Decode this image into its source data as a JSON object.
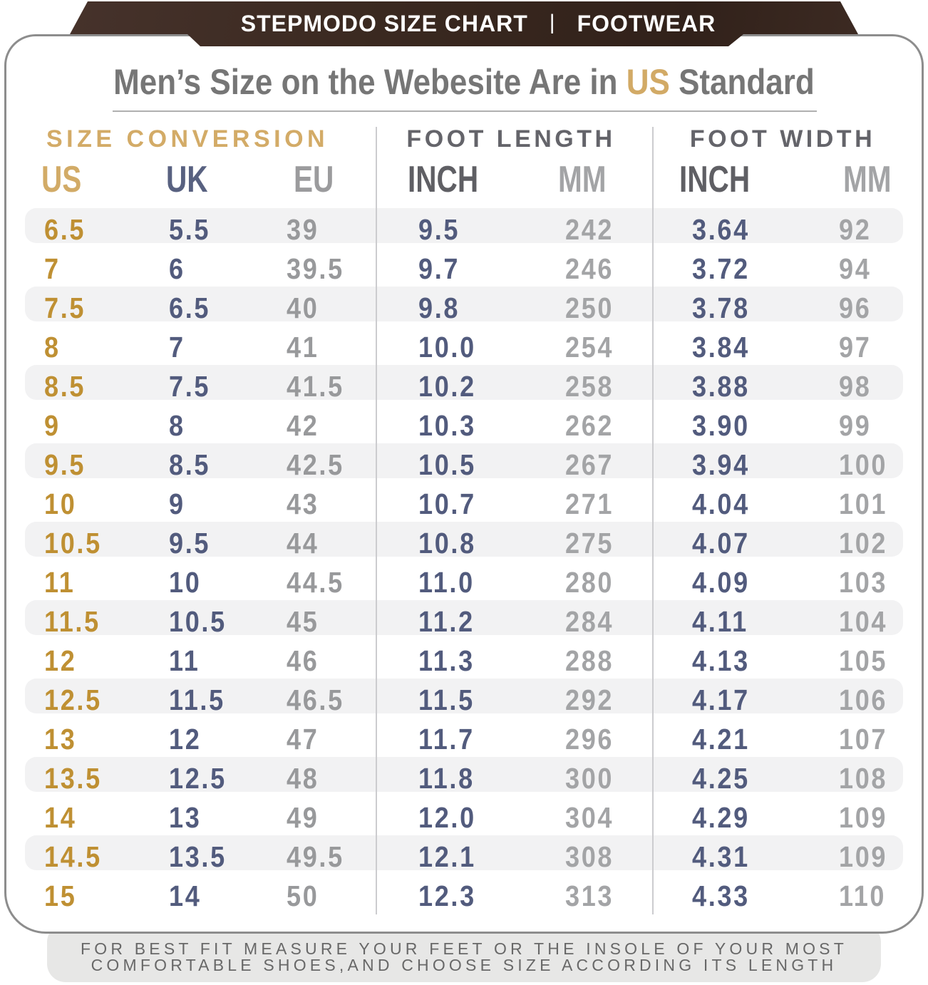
{
  "banner": {
    "left": "STEPMODO SIZE CHART",
    "separator": "|",
    "right": "FOOTWEAR"
  },
  "title": {
    "prefix": "Men’s Size on the Webesite Are in ",
    "accent": "US",
    "suffix": " Standard"
  },
  "groups": {
    "conversion": "SIZE CONVERSION",
    "length": "FOOT LENGTH",
    "width": "FOOT WIDTH"
  },
  "subheaders": {
    "us": "US",
    "uk": "UK",
    "eu": "EU",
    "len_inch": "INCH",
    "len_mm": "MM",
    "wid_inch": "INCH",
    "wid_mm": "MM"
  },
  "footer": {
    "line1": "FOR BEST FIT MEASURE YOUR FEET OR THE INSOLE OF YOUR MOST",
    "line2": "COMFORTABLE SHOES,AND CHOOSE SIZE ACCORDING ITS LENGTH"
  },
  "colors": {
    "gold": "#d2ab67",
    "gold_value": "#bf9033",
    "slate": "#525b7d",
    "gray": "#98999b",
    "banner_brown": "#3a2920",
    "stripe": "#f2f2f3"
  },
  "chart_data": {
    "type": "table",
    "columns": [
      "US",
      "UK",
      "EU",
      "FOOT LENGTH INCH",
      "FOOT LENGTH MM",
      "FOOT WIDTH INCH",
      "FOOT WIDTH MM"
    ],
    "rows": [
      [
        "6.5",
        "5.5",
        "39",
        "9.5",
        "242",
        "3.64",
        "92"
      ],
      [
        "7",
        "6",
        "39.5",
        "9.7",
        "246",
        "3.72",
        "94"
      ],
      [
        "7.5",
        "6.5",
        "40",
        "9.8",
        "250",
        "3.78",
        "96"
      ],
      [
        "8",
        "7",
        "41",
        "10.0",
        "254",
        "3.84",
        "97"
      ],
      [
        "8.5",
        "7.5",
        "41.5",
        "10.2",
        "258",
        "3.88",
        "98"
      ],
      [
        "9",
        "8",
        "42",
        "10.3",
        "262",
        "3.90",
        "99"
      ],
      [
        "9.5",
        "8.5",
        "42.5",
        "10.5",
        "267",
        "3.94",
        "100"
      ],
      [
        "10",
        "9",
        "43",
        "10.7",
        "271",
        "4.04",
        "101"
      ],
      [
        "10.5",
        "9.5",
        "44",
        "10.8",
        "275",
        "4.07",
        "102"
      ],
      [
        "11",
        "10",
        "44.5",
        "11.0",
        "280",
        "4.09",
        "103"
      ],
      [
        "11.5",
        "10.5",
        "45",
        "11.2",
        "284",
        "4.11",
        "104"
      ],
      [
        "12",
        "11",
        "46",
        "11.3",
        "288",
        "4.13",
        "105"
      ],
      [
        "12.5",
        "11.5",
        "46.5",
        "11.5",
        "292",
        "4.17",
        "106"
      ],
      [
        "13",
        "12",
        "47",
        "11.7",
        "296",
        "4.21",
        "107"
      ],
      [
        "13.5",
        "12.5",
        "48",
        "11.8",
        "300",
        "4.25",
        "108"
      ],
      [
        "14",
        "13",
        "49",
        "12.0",
        "304",
        "4.29",
        "109"
      ],
      [
        "14.5",
        "13.5",
        "49.5",
        "12.1",
        "308",
        "4.31",
        "109"
      ],
      [
        "15",
        "14",
        "50",
        "12.3",
        "313",
        "4.33",
        "110"
      ]
    ]
  }
}
